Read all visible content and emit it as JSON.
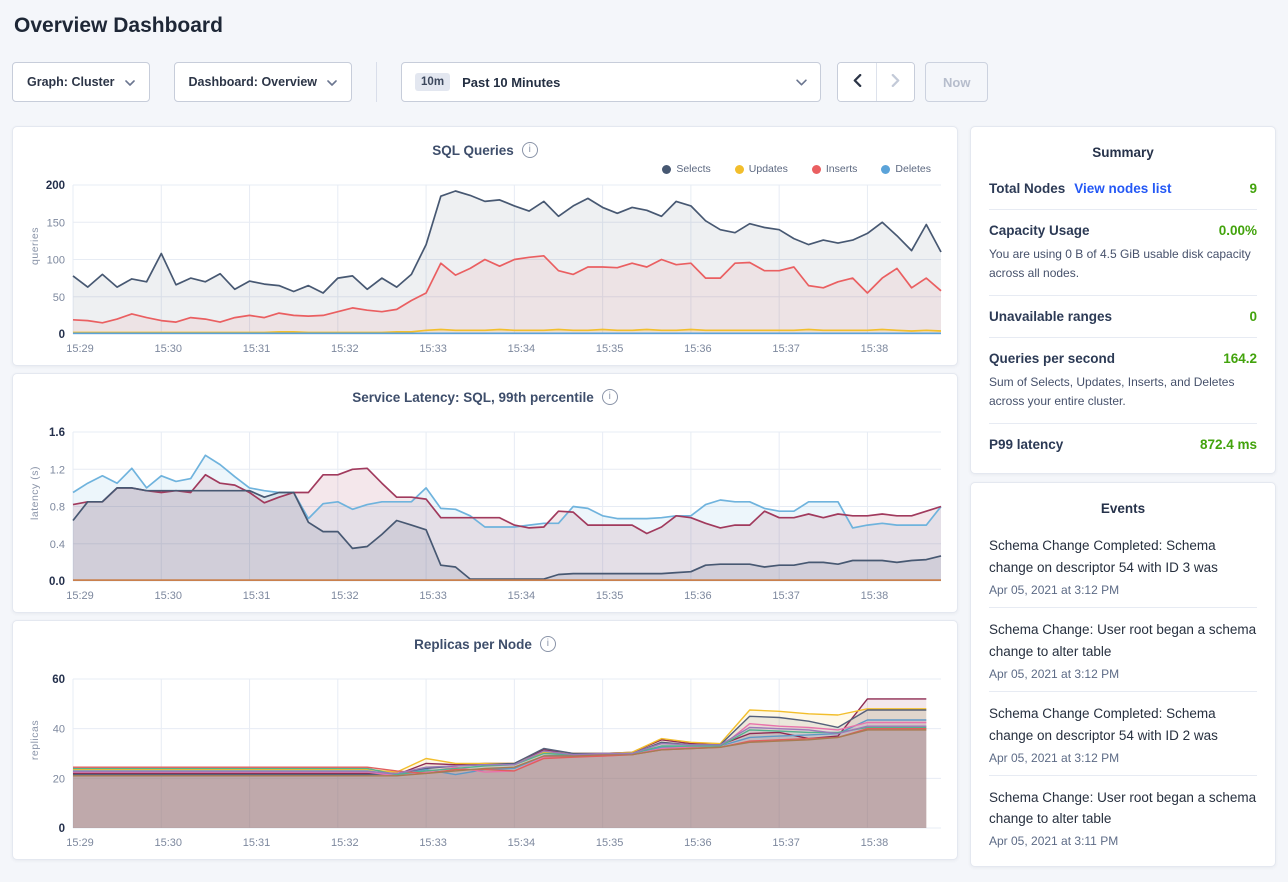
{
  "page": {
    "title": "Overview Dashboard"
  },
  "toolbar": {
    "graph_label": "Graph: Cluster",
    "dashboard_label": "Dashboard: Overview",
    "time_badge": "10m",
    "time_range_label": "Past 10 Minutes",
    "now_label": "Now",
    "prev_icon": "chevron-left",
    "next_icon": "chevron-right"
  },
  "colors": {
    "value_green": "#42a30c",
    "link_blue": "#2458f5",
    "grid": "#e7ecf4",
    "tick_text": "#7d889e",
    "tick_text_bold": "#24304c"
  },
  "summary": {
    "title": "Summary",
    "rows": [
      {
        "label": "Total Nodes",
        "link": "View nodes list",
        "value": "9"
      },
      {
        "label": "Capacity Usage",
        "value": "0.00%",
        "description": "You are using 0 B of 4.5 GiB usable disk capacity across all nodes."
      },
      {
        "label": "Unavailable ranges",
        "value": "0"
      },
      {
        "label": "Queries per second",
        "value": "164.2",
        "description": "Sum of Selects, Updates, Inserts, and Deletes across your entire cluster."
      },
      {
        "label": "P99 latency",
        "value": "872.4 ms"
      }
    ]
  },
  "events": {
    "title": "Events",
    "items": [
      {
        "message": "Schema Change Completed: Schema change on descriptor 54 with ID 3 was",
        "timestamp": "Apr 05, 2021 at 3:12 PM"
      },
      {
        "message": "Schema Change: User root began a schema change to alter table",
        "timestamp": "Apr 05, 2021 at 3:12 PM"
      },
      {
        "message": "Schema Change Completed: Schema change on descriptor 54 with ID 2 was",
        "timestamp": "Apr 05, 2021 at 3:12 PM"
      },
      {
        "message": "Schema Change: User root began a schema change to alter table",
        "timestamp": "Apr 05, 2021 at 3:11 PM"
      }
    ]
  },
  "chart_data": [
    {
      "type": "area",
      "title": "SQL Queries",
      "ylabel": "queries",
      "ylim": [
        0,
        200
      ],
      "yticks": [
        0,
        50,
        100,
        150,
        200
      ],
      "ytick_labels": [
        "0",
        "50",
        "100",
        "150",
        "200"
      ],
      "x_tick_labels": [
        "15:29",
        "15:30",
        "15:31",
        "15:32",
        "15:33",
        "15:34",
        "15:35",
        "15:36",
        "15:37",
        "15:38"
      ],
      "x_total_seconds": 590,
      "point_interval_seconds": 10,
      "legend": true,
      "fill_opacity": 0.09,
      "series": [
        {
          "name": "Selects",
          "color": "#475872",
          "values": [
            78,
            63,
            80,
            63,
            74,
            70,
            108,
            66,
            75,
            70,
            81,
            60,
            71,
            67,
            65,
            57,
            65,
            55,
            75,
            78,
            60,
            75,
            63,
            80,
            120,
            185,
            192,
            186,
            178,
            180,
            172,
            165,
            178,
            158,
            172,
            182,
            170,
            162,
            170,
            166,
            158,
            178,
            172,
            152,
            140,
            136,
            148,
            143,
            140,
            128,
            120,
            126,
            122,
            126,
            135,
            150,
            132,
            112,
            147,
            110
          ]
        },
        {
          "name": "Updates",
          "color": "#f2be2c",
          "values": [
            2,
            2,
            2,
            2,
            2,
            2,
            2,
            2,
            2,
            2,
            2,
            2,
            2,
            2,
            3,
            3,
            2,
            2,
            2,
            2,
            2,
            2,
            3,
            3,
            5,
            6,
            5,
            5,
            5,
            6,
            5,
            5,
            5,
            6,
            5,
            5,
            6,
            5,
            5,
            6,
            5,
            5,
            6,
            5,
            5,
            5,
            5,
            5,
            5,
            5,
            6,
            5,
            5,
            5,
            5,
            6,
            5,
            4,
            5,
            4
          ]
        },
        {
          "name": "Inserts",
          "color": "#ea5f61",
          "values": [
            19,
            18,
            15,
            20,
            27,
            22,
            18,
            16,
            22,
            20,
            16,
            22,
            25,
            22,
            28,
            25,
            24,
            25,
            30,
            35,
            32,
            30,
            33,
            45,
            55,
            95,
            79,
            88,
            100,
            91,
            100,
            103,
            105,
            85,
            80,
            90,
            90,
            89,
            95,
            90,
            100,
            93,
            95,
            75,
            75,
            95,
            96,
            85,
            85,
            90,
            65,
            62,
            70,
            75,
            55,
            75,
            88,
            62,
            75,
            58
          ]
        },
        {
          "name": "Deletes",
          "color": "#5ba3d9",
          "values": [
            1,
            1,
            1,
            1,
            1,
            1,
            1,
            1,
            1,
            1,
            1,
            1,
            1,
            1,
            1,
            1,
            1,
            1,
            1,
            1,
            1,
            1,
            1,
            1,
            1,
            1,
            1,
            1,
            1,
            1,
            1,
            1,
            1,
            1,
            1,
            1,
            1,
            1,
            1,
            1,
            1,
            1,
            1,
            1,
            1,
            1,
            1,
            1,
            1,
            1,
            1,
            1,
            1,
            1,
            1,
            1,
            1,
            1,
            1,
            1
          ]
        }
      ]
    },
    {
      "type": "area",
      "title": "Service Latency: SQL, 99th percentile",
      "ylabel": "latency (s)",
      "ylim": [
        0,
        1.6
      ],
      "yticks": [
        0,
        0.4,
        0.8,
        1.2,
        1.6
      ],
      "ytick_labels": [
        "0.0",
        "0.4",
        "0.8",
        "1.2",
        "1.6"
      ],
      "x_tick_labels": [
        "15:29",
        "15:30",
        "15:31",
        "15:32",
        "15:33",
        "15:34",
        "15:35",
        "15:36",
        "15:37",
        "15:38"
      ],
      "x_total_seconds": 590,
      "point_interval_seconds": 10,
      "legend": false,
      "fill_opacity": 0.12,
      "series": [
        {
          "id": "series-1",
          "color": "#6fb3dd",
          "values": [
            0.95,
            1.05,
            1.13,
            1.05,
            1.21,
            1.0,
            1.13,
            1.07,
            1.1,
            1.35,
            1.25,
            1.12,
            1.0,
            0.97,
            0.95,
            0.95,
            0.67,
            0.83,
            0.85,
            0.77,
            0.82,
            0.85,
            0.85,
            0.85,
            1.0,
            0.78,
            0.77,
            0.7,
            0.58,
            0.58,
            0.58,
            0.6,
            0.62,
            0.62,
            0.8,
            0.78,
            0.7,
            0.67,
            0.67,
            0.67,
            0.68,
            0.7,
            0.7,
            0.82,
            0.87,
            0.85,
            0.85,
            0.78,
            0.75,
            0.75,
            0.85,
            0.85,
            0.85,
            0.57,
            0.6,
            0.62,
            0.6,
            0.6,
            0.6,
            0.8
          ]
        },
        {
          "id": "series-2",
          "color": "#a13a5d",
          "values": [
            0.82,
            0.85,
            0.85,
            1.0,
            1.0,
            0.97,
            0.95,
            0.97,
            0.95,
            1.14,
            1.05,
            1.03,
            0.95,
            0.84,
            0.9,
            0.95,
            0.95,
            1.14,
            1.14,
            1.2,
            1.21,
            1.05,
            0.9,
            0.9,
            0.88,
            0.68,
            0.68,
            0.68,
            0.68,
            0.68,
            0.6,
            0.57,
            0.58,
            0.75,
            0.74,
            0.6,
            0.6,
            0.6,
            0.6,
            0.51,
            0.58,
            0.7,
            0.68,
            0.62,
            0.57,
            0.6,
            0.6,
            0.75,
            0.68,
            0.68,
            0.72,
            0.68,
            0.72,
            0.7,
            0.7,
            0.72,
            0.7,
            0.7,
            0.75,
            0.8
          ]
        },
        {
          "id": "series-3",
          "color": "#475872",
          "values": [
            0.65,
            0.85,
            0.85,
            1.0,
            1.0,
            0.97,
            0.97,
            0.97,
            0.97,
            0.97,
            0.97,
            0.97,
            0.97,
            0.9,
            0.95,
            0.95,
            0.63,
            0.53,
            0.53,
            0.35,
            0.37,
            0.5,
            0.65,
            0.6,
            0.55,
            0.17,
            0.15,
            0.02,
            0.02,
            0.02,
            0.02,
            0.02,
            0.02,
            0.07,
            0.08,
            0.08,
            0.08,
            0.08,
            0.08,
            0.08,
            0.08,
            0.09,
            0.1,
            0.17,
            0.18,
            0.18,
            0.18,
            0.15,
            0.17,
            0.17,
            0.2,
            0.2,
            0.18,
            0.22,
            0.22,
            0.22,
            0.2,
            0.22,
            0.23,
            0.27
          ]
        },
        {
          "id": "series-4",
          "color": "#c9804e",
          "interval": 590,
          "values": [
            0.01,
            0.01
          ]
        }
      ]
    },
    {
      "type": "area",
      "title": "Replicas per Node",
      "ylabel": "replicas",
      "ylim": [
        0,
        60
      ],
      "yticks": [
        0,
        20,
        40,
        60
      ],
      "ytick_labels": [
        "0",
        "20",
        "40",
        "60"
      ],
      "x_tick_labels": [
        "15:29",
        "15:30",
        "15:31",
        "15:32",
        "15:33",
        "15:34",
        "15:35",
        "15:36",
        "15:37",
        "15:38"
      ],
      "x_total_seconds": 590,
      "point_interval_seconds": 20,
      "legend": false,
      "fill_opacity": 0.11,
      "series": [
        {
          "id": "node-1",
          "color": "#8e2b52",
          "values": [
            22,
            22,
            22,
            22,
            22,
            22,
            22,
            22,
            22,
            22,
            22,
            21.5,
            26,
            25.5,
            26,
            26,
            31.5,
            30,
            30,
            30.5,
            35.5,
            34,
            33.5,
            38,
            38.5,
            36,
            37,
            52,
            52,
            52
          ]
        },
        {
          "id": "node-2",
          "color": "#f2be2c",
          "values": [
            23.5,
            23.5,
            23.5,
            23.5,
            23.5,
            23.5,
            23.5,
            23.5,
            23.5,
            23.5,
            23.5,
            22.5,
            28,
            26,
            26,
            26,
            30.5,
            30,
            30,
            30.5,
            36,
            34.5,
            34,
            47.5,
            47,
            46,
            45.5,
            48,
            48,
            48
          ]
        },
        {
          "id": "node-3",
          "color": "#55607a",
          "values": [
            21.5,
            21.5,
            21.5,
            21.5,
            21.5,
            21.5,
            21.5,
            21.5,
            21.5,
            21.5,
            21.5,
            22,
            24,
            25,
            25.5,
            26,
            32,
            30,
            30,
            30,
            34.5,
            33.5,
            33.5,
            45,
            44.5,
            43,
            40.5,
            47.5,
            47.5,
            47.5
          ]
        },
        {
          "id": "node-4",
          "color": "#5f98c6",
          "values": [
            23,
            23,
            23,
            23,
            23,
            23,
            23,
            23,
            23,
            23,
            23,
            21.5,
            23.5,
            21.5,
            23.5,
            24,
            29,
            29.5,
            29.5,
            30,
            32.5,
            33,
            33,
            36.5,
            37,
            37.5,
            38,
            43.5,
            43.5,
            43.5
          ]
        },
        {
          "id": "node-5",
          "color": "#e873ab",
          "values": [
            22.5,
            22.5,
            22.5,
            22.5,
            22.5,
            22.5,
            22.5,
            22.5,
            22.5,
            22.5,
            22.5,
            21,
            22.5,
            24.5,
            22.5,
            23,
            28.5,
            29,
            29,
            29.5,
            32,
            32.5,
            32.5,
            42,
            41,
            40.5,
            39.5,
            42.5,
            42.5,
            42.5
          ]
        },
        {
          "id": "node-6",
          "color": "#54b28c",
          "values": [
            24,
            24,
            24,
            24,
            24,
            24,
            24,
            24,
            24,
            24,
            24,
            21.5,
            23,
            24,
            25,
            25.5,
            30,
            29.5,
            29.5,
            30,
            33,
            33,
            33,
            39.5,
            39,
            38.5,
            38.5,
            40.5,
            40.5,
            40.5
          ]
        },
        {
          "id": "node-7",
          "color": "#e05f5d",
          "values": [
            24.5,
            24.5,
            24.5,
            24.5,
            24.5,
            24.5,
            24.5,
            24.5,
            24.5,
            24.5,
            24.5,
            23,
            22,
            23.5,
            23.5,
            23,
            28,
            28.5,
            29,
            29.5,
            31.5,
            32,
            32.5,
            35,
            35.5,
            36,
            36.5,
            40,
            40,
            40
          ]
        },
        {
          "id": "node-8",
          "color": "#a77c52",
          "values": [
            21,
            21,
            21,
            21,
            21,
            21,
            21,
            21,
            21,
            21,
            21,
            21,
            22,
            23,
            24,
            24.5,
            29,
            29,
            29.5,
            29.5,
            31.5,
            32,
            32.5,
            34.5,
            35,
            35.5,
            36.5,
            39.5,
            39.5,
            39.5
          ]
        },
        {
          "id": "node-9",
          "color": "#9b7ab8",
          "values": [
            22.8,
            22.8,
            22.8,
            22.8,
            22.8,
            22.8,
            22.8,
            22.8,
            22.8,
            22.8,
            22.8,
            22,
            24.5,
            25,
            25.5,
            25.5,
            31,
            29.5,
            30,
            30,
            34,
            33.5,
            33.5,
            40.5,
            40,
            39.5,
            38,
            41,
            41,
            41
          ]
        }
      ]
    }
  ]
}
